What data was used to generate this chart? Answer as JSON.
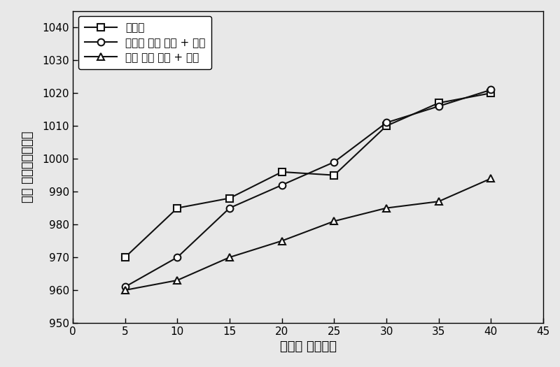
{
  "x": [
    5,
    10,
    15,
    20,
    25,
    30,
    35,
    40
  ],
  "series1": {
    "label": "无涂层",
    "y": [
      970,
      985,
      988,
      996,
      995,
      1010,
      1017,
      1020
    ],
    "marker": "s"
  },
  "series2": {
    "label": "未经表 面预 处理 + 涂层",
    "y": [
      961,
      970,
      985,
      992,
      999,
      1011,
      1016,
      1021
    ],
    "marker": "o"
  },
  "series3": {
    "label": "经表 面预 处理 + 涂层",
    "y": [
      960,
      963,
      970,
      975,
      981,
      985,
      987,
      994
    ],
    "marker": "^"
  },
  "xlim": [
    0,
    45
  ],
  "ylim": [
    950,
    1045
  ],
  "xticks": [
    0,
    5,
    10,
    15,
    20,
    25,
    30,
    35,
    40,
    45
  ],
  "yticks": [
    950,
    960,
    970,
    980,
    990,
    1000,
    1010,
    1020,
    1030,
    1040
  ],
  "xlabel": "运行时 间（天）",
  "ylabel": "管壁 温度（摄氏度）",
  "bg_color": "#e8e8e8",
  "line_color": "#111111"
}
